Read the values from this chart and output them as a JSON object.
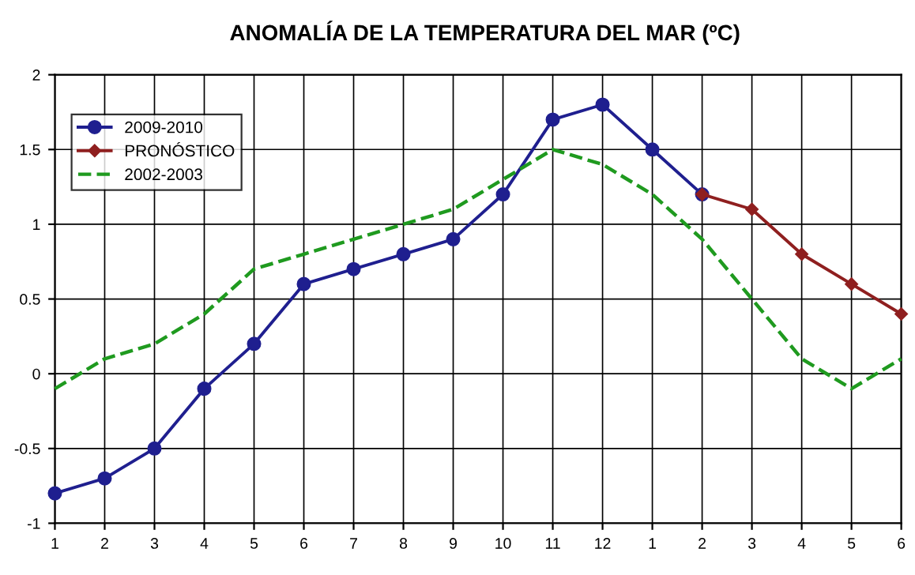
{
  "chart_data": {
    "type": "line",
    "title": "ANOMALÍA DE LA TEMPERATURA DEL MAR (ºC)",
    "categories": [
      "1",
      "2",
      "3",
      "4",
      "5",
      "6",
      "7",
      "8",
      "9",
      "10",
      "11",
      "12",
      "1",
      "2",
      "3",
      "4",
      "5",
      "6"
    ],
    "series": [
      {
        "name": "2009-2010",
        "color": "#1f1f8f",
        "marker": "circle",
        "line_style": "solid",
        "values": [
          -0.8,
          -0.7,
          -0.5,
          -0.1,
          0.2,
          0.6,
          0.7,
          0.8,
          0.9,
          1.2,
          1.7,
          1.8,
          1.5,
          1.2,
          null,
          null,
          null,
          null
        ]
      },
      {
        "name": "PRONÓSTICO",
        "color": "#8f1f1f",
        "marker": "diamond",
        "line_style": "solid",
        "values": [
          null,
          null,
          null,
          null,
          null,
          null,
          null,
          null,
          null,
          null,
          null,
          null,
          null,
          1.2,
          1.1,
          0.8,
          0.6,
          0.4
        ]
      },
      {
        "name": "2002-2003",
        "color": "#1f9a1f",
        "marker": "none",
        "line_style": "dashed",
        "values": [
          -0.1,
          0.1,
          0.2,
          0.4,
          0.7,
          0.8,
          0.9,
          1.0,
          1.1,
          1.3,
          1.5,
          1.4,
          1.2,
          0.9,
          0.5,
          0.1,
          -0.1,
          0.1
        ]
      }
    ],
    "ylim": [
      -1,
      2
    ],
    "yticks": [
      -1,
      -0.5,
      0,
      0.5,
      1,
      1.5,
      2
    ],
    "grid": true,
    "legend": "top left"
  }
}
